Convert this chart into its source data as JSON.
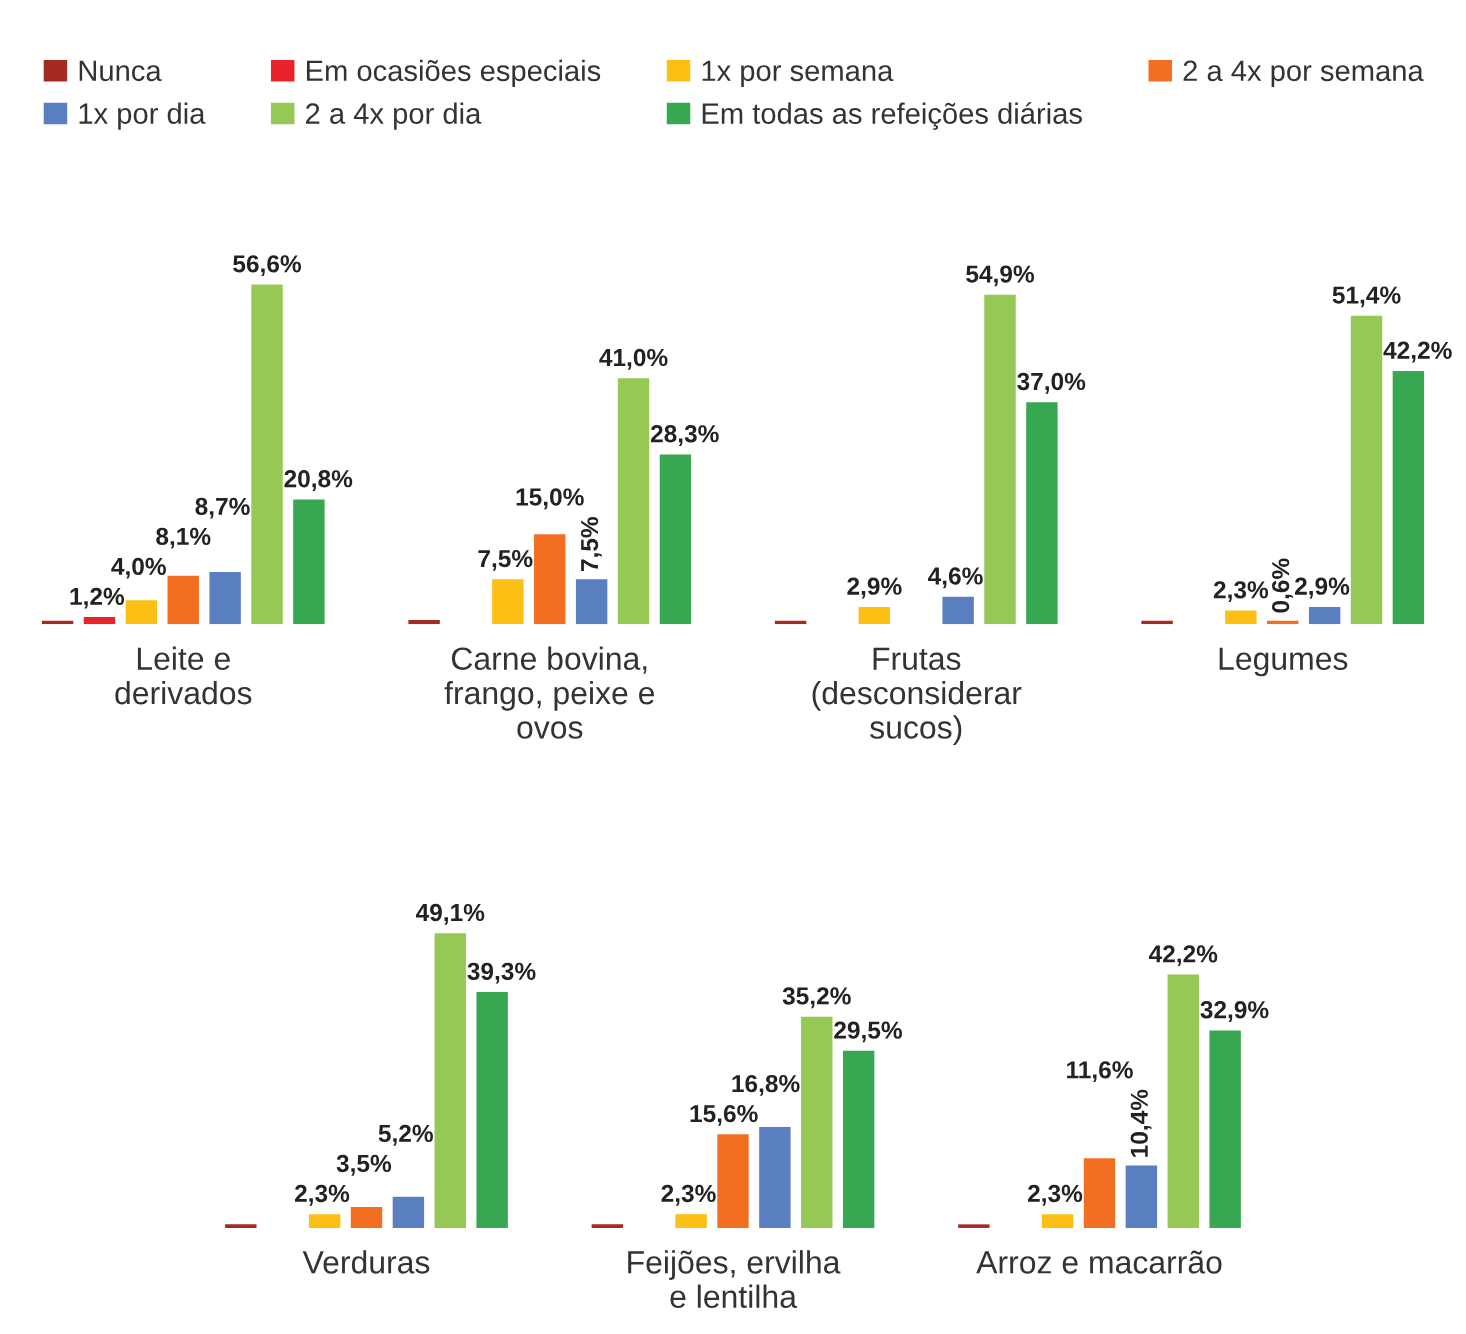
{
  "chart_data": [
    {
      "type": "bar",
      "categories": [
        "Leite e derivados",
        "Carne bovina, frango, peixe e ovos",
        "Frutas (desconsiderar sucos)",
        "Legumes"
      ],
      "legend": "top",
      "grid": false,
      "tick_labels": "x",
      "series": [
        {
          "name": "Nunca",
          "color": "#a52a22",
          "values": [
            0.6,
            0.7,
            0.6,
            0.6
          ],
          "value_labels": [
            null,
            null,
            null,
            null
          ]
        },
        {
          "name": "Em ocasiões especiais",
          "color": "#e8232a",
          "values": [
            1.2,
            null,
            null,
            null
          ],
          "value_labels": [
            "1,2%",
            null,
            null,
            null
          ]
        },
        {
          "name": "1x por semana",
          "color": "#fcbf14",
          "values": [
            4.0,
            7.5,
            2.9,
            2.3
          ],
          "value_labels": [
            "4,0%",
            "7,5%",
            "2,9%",
            "2,3%"
          ]
        },
        {
          "name": "2 a 4x por semana",
          "color": "#f26f21",
          "values": [
            8.1,
            15.0,
            null,
            0.6
          ],
          "value_labels": [
            "8,1%",
            "15,0%",
            null,
            "0,6%"
          ]
        },
        {
          "name": "1x por dia",
          "color": "#5a7fc1",
          "values": [
            8.7,
            7.5,
            4.6,
            2.9
          ],
          "value_labels": [
            "8,7%",
            "7,5%",
            "4,6%",
            "2,9%"
          ]
        },
        {
          "name": "2 a 4x por dia",
          "color": "#95c854",
          "values": [
            56.6,
            41.0,
            54.9,
            51.4
          ],
          "value_labels": [
            "56,6%",
            "41,0%",
            "54,9%",
            "51,4%"
          ]
        },
        {
          "name": "Em todas as refeições diárias",
          "color": "#37a851",
          "values": [
            20.8,
            28.3,
            37.0,
            42.2
          ],
          "value_labels": [
            "20,8%",
            "28,3%",
            "37,0%",
            "42,2%"
          ]
        }
      ]
    },
    {
      "type": "bar",
      "categories": [
        "Verduras",
        "Feijões, ervilha e lentilha",
        "Arroz e macarrão"
      ],
      "grid": false,
      "tick_labels": "x",
      "series": [
        {
          "color": "#a52a22",
          "values": [
            0.6,
            0.6,
            0.6
          ],
          "value_labels": [
            null,
            null,
            null
          ]
        },
        {
          "color": "#e8232a",
          "values": [
            null,
            null,
            null
          ],
          "value_labels": [
            null,
            null,
            null
          ]
        },
        {
          "color": "#fcbf14",
          "values": [
            2.3,
            2.3,
            2.3
          ],
          "value_labels": [
            "2,3%",
            "2,3%",
            "2,3%"
          ]
        },
        {
          "color": "#f26f21",
          "values": [
            3.5,
            15.6,
            11.6
          ],
          "value_labels": [
            "3,5%",
            "15,6%",
            "11,6%"
          ]
        },
        {
          "color": "#5a7fc1",
          "values": [
            5.2,
            16.8,
            10.4
          ],
          "value_labels": [
            "5,2%",
            "16,8%",
            "10,4%"
          ]
        },
        {
          "color": "#95c854",
          "values": [
            49.1,
            35.2,
            42.2
          ],
          "value_labels": [
            "49,1%",
            "35,2%",
            "42,2%"
          ]
        },
        {
          "color": "#37a851",
          "values": [
            39.3,
            29.5,
            32.9
          ],
          "value_labels": [
            "39,3%",
            "29,5%",
            "32,9%"
          ]
        }
      ]
    }
  ]
}
